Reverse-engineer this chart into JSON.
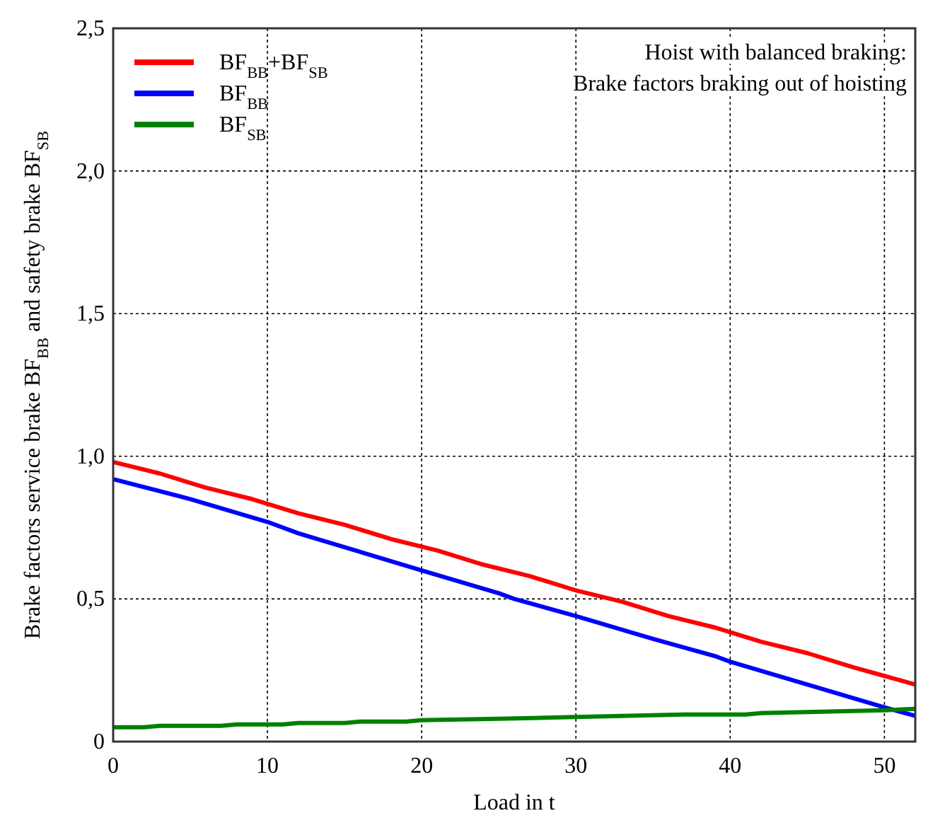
{
  "chart_data": {
    "type": "line",
    "xlabel": "Load in t",
    "ylabel": "Brake factors service brake BF$_{BB}$ and safety brake BF$_{SB}$",
    "annotations": [
      "Hoist with balanced braking:",
      "Brake factors braking out of hoisting"
    ],
    "xlim": [
      0,
      52
    ],
    "xticks": [
      0,
      10,
      20,
      30,
      40,
      50
    ],
    "ylim": [
      0,
      2.5
    ],
    "yticks": [
      0,
      {
        "value": 0.5,
        "label": "0,5"
      },
      {
        "value": 1,
        "label": "1,0"
      },
      {
        "value": 1.5,
        "label": "1,5"
      },
      {
        "value": 2,
        "label": "2,0"
      },
      {
        "value": 2.5,
        "label": "2,5"
      }
    ],
    "grid": true,
    "legend": "top left",
    "line_style": "solid",
    "marker": "none",
    "series": [
      {
        "name": "BF$_{BB}$+BF$_{SB}$",
        "color": "#ff0000",
        "x": [
          0,
          3,
          6,
          9,
          12,
          15,
          18,
          21,
          24,
          27,
          30,
          33,
          36,
          39,
          42,
          45,
          48,
          50,
          52
        ],
        "values": [
          0.98,
          0.94,
          0.89,
          0.85,
          0.8,
          0.76,
          0.71,
          0.67,
          0.62,
          0.58,
          0.53,
          0.49,
          0.44,
          0.4,
          0.35,
          0.31,
          0.26,
          0.23,
          0.2
        ]
      },
      {
        "name": "BF$_{BB}$",
        "color": "#0000ff",
        "x": [
          0,
          5,
          10,
          12,
          20,
          25,
          26,
          30,
          35,
          39,
          40,
          45,
          50,
          52
        ],
        "values": [
          0.92,
          0.85,
          0.77,
          0.73,
          0.6,
          0.52,
          0.5,
          0.44,
          0.36,
          0.3,
          0.28,
          0.2,
          0.12,
          0.09
        ]
      },
      {
        "name": "BF$_{SB}$",
        "color": "#008000",
        "x": [
          0,
          2,
          3,
          7,
          8,
          11,
          12,
          15,
          16,
          19,
          20,
          25,
          29,
          33,
          37,
          41,
          42,
          46,
          50,
          52
        ],
        "values": [
          0.05,
          0.05,
          0.055,
          0.055,
          0.06,
          0.06,
          0.065,
          0.065,
          0.07,
          0.07,
          0.075,
          0.08,
          0.085,
          0.09,
          0.095,
          0.095,
          0.1,
          0.105,
          0.11,
          0.115
        ]
      }
    ]
  }
}
